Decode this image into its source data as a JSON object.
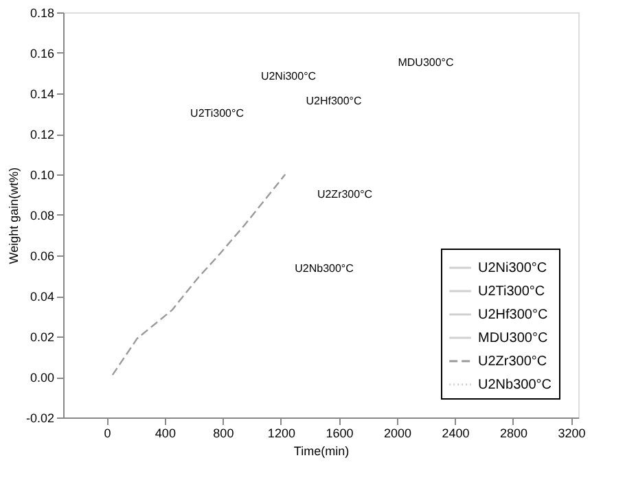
{
  "chart_data": {
    "type": "line",
    "xlabel": "Time(min)",
    "ylabel": "Weight gain(wt%)",
    "xlim": [
      -300,
      3250
    ],
    "ylim": [
      -0.02,
      0.18
    ],
    "xticks": [
      0,
      400,
      800,
      1200,
      1600,
      2000,
      2400,
      2800,
      3200
    ],
    "yticks": [
      {
        "value": -0.02,
        "label": "-0.02"
      },
      {
        "value": 0,
        "label": "0.00"
      },
      {
        "value": 0.02,
        "label": "0.02"
      },
      {
        "value": 0.04,
        "label": "0.04"
      },
      {
        "value": 0.06,
        "label": "0.06"
      },
      {
        "value": 0.08,
        "label": "0.08"
      },
      {
        "value": 0.1,
        "label": "0.10"
      },
      {
        "value": 0.12,
        "label": "0.12"
      },
      {
        "value": 0.14,
        "label": "0.14"
      },
      {
        "value": 0.16,
        "label": "0.16"
      },
      {
        "value": 0.18,
        "label": "0.18"
      }
    ],
    "grid": false,
    "legend": "bottom right",
    "marker": "none",
    "series": [
      {
        "name": "U2Ni300°C",
        "color": "#d0d0d0",
        "line_style": "solid"
      },
      {
        "name": "U2Ti300°C",
        "color": "#d0d0d0",
        "line_style": "solid"
      },
      {
        "name": "U2Hf300°C",
        "color": "#d0d0d0",
        "line_style": "solid"
      },
      {
        "name": "MDU300°C",
        "color": "#d0d0d0",
        "line_style": "solid"
      },
      {
        "name": "U2Zr300°C",
        "color": "#9a9a9a",
        "line_style": "dashed",
        "x": [
          40,
          210,
          450,
          630,
          770,
          950,
          1130,
          1230
        ],
        "values": [
          0.001,
          0.019,
          0.033,
          0.049,
          0.06,
          0.075,
          0.091,
          0.1
        ]
      },
      {
        "name": "U2Nb300°C",
        "color": "#d0d0d0",
        "line_style": "dotted"
      }
    ],
    "annotations": [
      "U2Ni300°C",
      "MDU300°C",
      "U2Hf300°C",
      "U2Ti300°C",
      "U2Zr300°C",
      "U2Nb300°C"
    ]
  }
}
